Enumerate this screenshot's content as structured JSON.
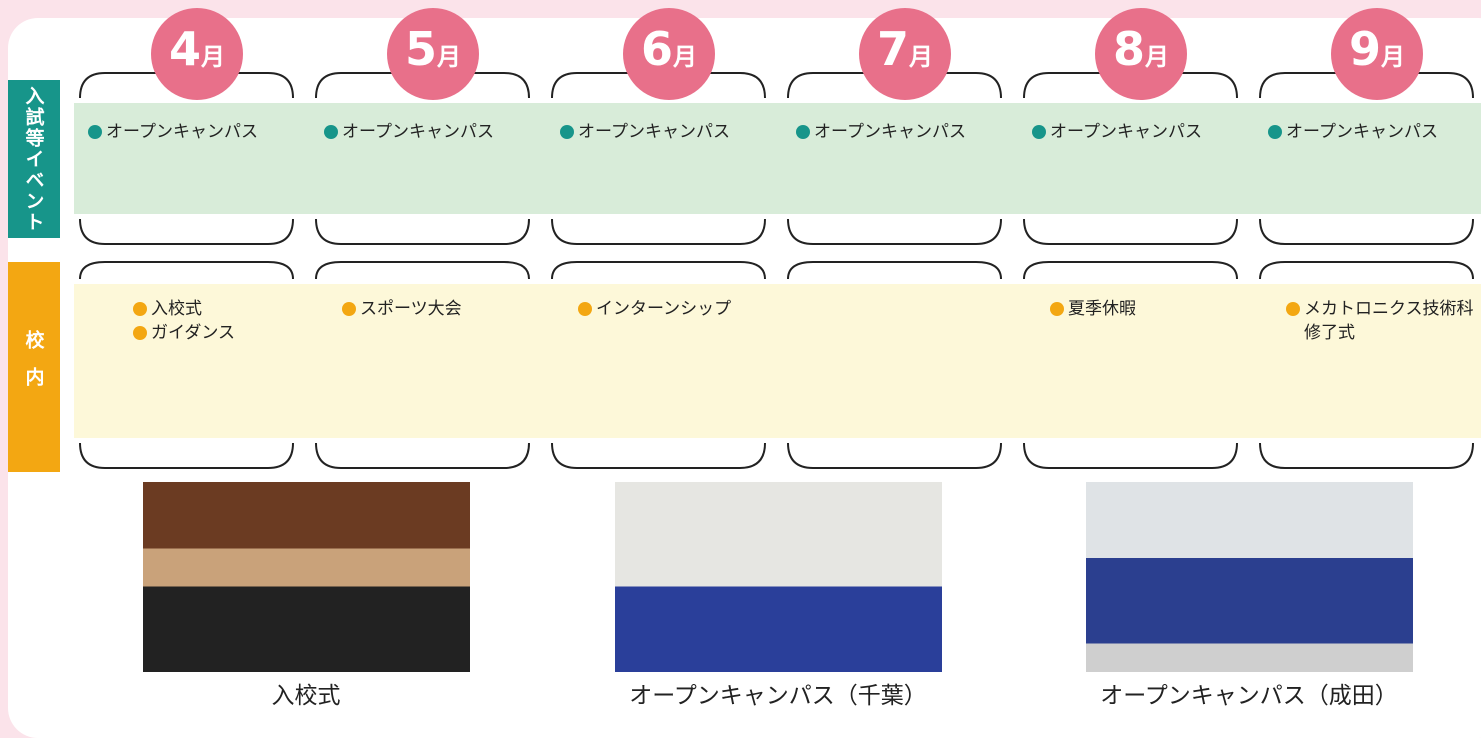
{
  "side_labels": {
    "events": "入試等イベント",
    "campus": "校内"
  },
  "months": [
    {
      "number": "4",
      "suffix": "月",
      "events": [
        [
          "オープンキャンパス"
        ]
      ],
      "campus": [
        [
          "入校式"
        ],
        [
          "ガイダンス"
        ]
      ]
    },
    {
      "number": "5",
      "suffix": "月",
      "events": [
        [
          "オープンキャンパス"
        ]
      ],
      "campus": [
        [
          "スポーツ大会"
        ]
      ]
    },
    {
      "number": "6",
      "suffix": "月",
      "events": [
        [
          "オープンキャンパス"
        ]
      ],
      "campus": [
        [
          "インターンシップ"
        ]
      ]
    },
    {
      "number": "7",
      "suffix": "月",
      "events": [
        [
          "オープンキャンパス"
        ]
      ],
      "campus": []
    },
    {
      "number": "8",
      "suffix": "月",
      "events": [
        [
          "オープンキャンパス"
        ]
      ],
      "campus": [
        [
          "夏季休暇"
        ]
      ]
    },
    {
      "number": "9",
      "suffix": "月",
      "events": [
        [
          "オープンキャンパス"
        ]
      ],
      "campus": [
        [
          "メカトロニクス技術科",
          "修了式"
        ]
      ]
    }
  ],
  "photos": [
    {
      "caption": "入校式"
    },
    {
      "caption": "オープンキャンパス（千葉）"
    },
    {
      "caption": "オープンキャンパス（成田）"
    }
  ]
}
